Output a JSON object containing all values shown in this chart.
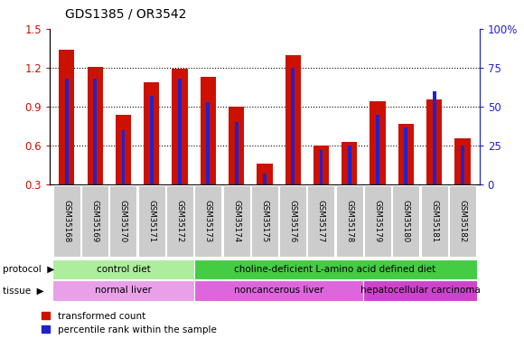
{
  "title": "GDS1385 / OR3542",
  "samples": [
    "GSM35168",
    "GSM35169",
    "GSM35170",
    "GSM35171",
    "GSM35172",
    "GSM35173",
    "GSM35174",
    "GSM35175",
    "GSM35176",
    "GSM35177",
    "GSM35178",
    "GSM35179",
    "GSM35180",
    "GSM35181",
    "GSM35182"
  ],
  "red_values": [
    1.34,
    1.21,
    0.84,
    1.09,
    1.19,
    1.13,
    0.9,
    0.46,
    1.3,
    0.6,
    0.63,
    0.94,
    0.77,
    0.96,
    0.66
  ],
  "blue_percentiles": [
    68,
    68,
    35,
    57,
    68,
    53,
    40,
    7,
    75,
    22,
    25,
    45,
    37,
    60,
    25
  ],
  "ylim_left": [
    0.3,
    1.5
  ],
  "ylim_right": [
    0,
    100
  ],
  "yticks_left": [
    0.3,
    0.6,
    0.9,
    1.2,
    1.5
  ],
  "yticks_right": [
    0,
    25,
    50,
    75,
    100
  ],
  "protocol_groups": [
    {
      "label": "control diet",
      "start": 0,
      "end": 5,
      "color": "#aeed9e"
    },
    {
      "label": "choline-deficient L-amino acid defined diet",
      "start": 5,
      "end": 15,
      "color": "#44cc44"
    }
  ],
  "tissue_groups": [
    {
      "label": "normal liver",
      "start": 0,
      "end": 5,
      "color": "#e8a0e8"
    },
    {
      "label": "noncancerous liver",
      "start": 5,
      "end": 11,
      "color": "#dd66dd"
    },
    {
      "label": "hepatocellular carcinoma",
      "start": 11,
      "end": 15,
      "color": "#cc44cc"
    }
  ],
  "red_color": "#cc1100",
  "blue_color": "#2222cc",
  "background_color": "#ffffff"
}
